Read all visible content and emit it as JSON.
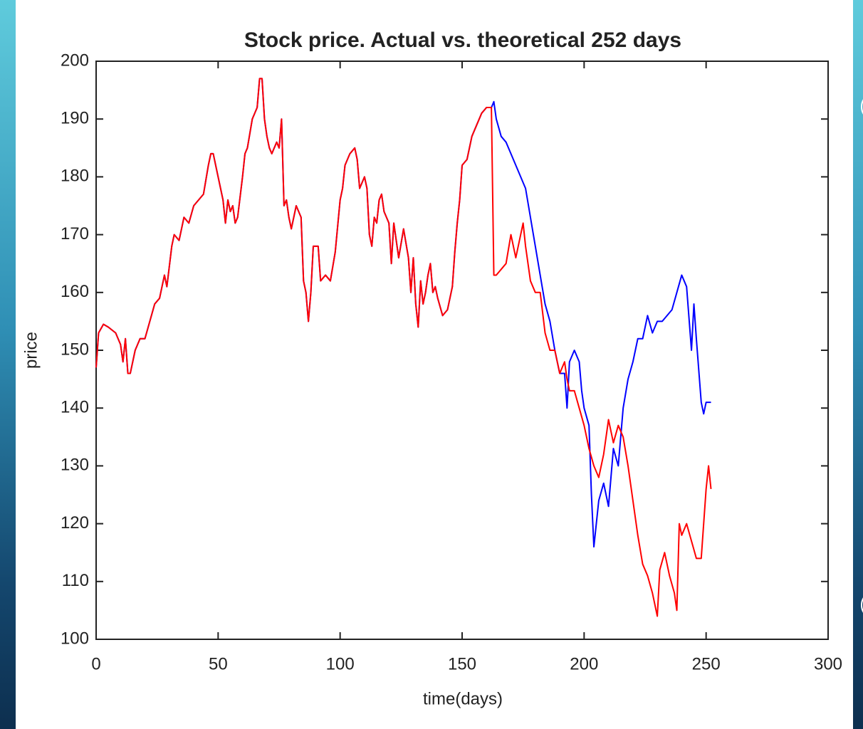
{
  "chart_data": {
    "type": "line",
    "title": "Stock price. Actual vs. theoretical 252 days",
    "x_label": "time(days)",
    "y_label": "price",
    "xlim": [
      0,
      300
    ],
    "xticks": [
      0,
      50,
      100,
      150,
      200,
      250,
      300
    ],
    "ylim": [
      100,
      200
    ],
    "yticks": [
      100,
      110,
      120,
      130,
      140,
      150,
      160,
      170,
      180,
      190,
      200
    ],
    "series": [
      {
        "color": "#0000ff",
        "x": [
          0,
          1,
          3,
          5,
          8,
          10,
          11,
          12,
          13,
          14,
          16,
          18,
          20,
          22,
          24,
          26,
          28,
          29,
          31,
          32,
          34,
          36,
          38,
          40,
          42,
          44,
          46,
          47,
          48,
          50,
          52,
          53,
          54,
          55,
          56,
          57,
          58,
          60,
          61,
          62,
          64,
          65,
          66,
          67,
          68,
          69,
          70,
          71,
          72,
          74,
          75,
          76,
          77,
          78,
          79,
          80,
          82,
          84,
          85,
          86,
          87,
          88,
          89,
          91,
          92,
          94,
          96,
          98,
          100,
          101,
          102,
          104,
          106,
          107,
          108,
          110,
          111,
          112,
          113,
          114,
          115,
          116,
          117,
          118,
          120,
          121,
          122,
          124,
          126,
          128,
          129,
          130,
          131,
          132,
          133,
          134,
          135,
          136,
          137,
          138,
          139,
          140,
          142,
          144,
          146,
          147,
          148,
          149,
          150,
          152,
          154,
          156,
          158,
          160,
          161,
          162,
          163,
          164,
          166,
          168,
          170,
          172,
          174,
          176,
          178,
          180,
          182,
          184,
          186,
          188,
          190,
          192,
          193,
          194,
          196,
          198,
          199,
          200,
          202,
          203,
          204,
          206,
          208,
          210,
          212,
          214,
          216,
          218,
          220,
          222,
          224,
          226,
          228,
          230,
          232,
          234,
          236,
          238,
          240,
          242,
          244,
          245,
          246,
          248,
          249,
          250,
          252
        ],
        "values": [
          147,
          153,
          154.5,
          154,
          153,
          151,
          148,
          152,
          146,
          146,
          150,
          152,
          152,
          155,
          158,
          159,
          163,
          161,
          168,
          170,
          169,
          173,
          172,
          175,
          176,
          177,
          182,
          184,
          184,
          180,
          176,
          172,
          176,
          174,
          175,
          172,
          173,
          180,
          184,
          185,
          190,
          191,
          192,
          197,
          197,
          190,
          187,
          185,
          184,
          186,
          185,
          190,
          175,
          176,
          173,
          171,
          175,
          173,
          162,
          160,
          155,
          160,
          168,
          168,
          162,
          163,
          162,
          167,
          176,
          178,
          182,
          184,
          185,
          183,
          178,
          180,
          178,
          170,
          168,
          173,
          172,
          176,
          177,
          174,
          172,
          165,
          172,
          166,
          171,
          166,
          160,
          166,
          158,
          154,
          162,
          158,
          160,
          163,
          165,
          160,
          161,
          159,
          156,
          157,
          161,
          167,
          172,
          176,
          182,
          183,
          187,
          189,
          191,
          192,
          192,
          192,
          193,
          190,
          187,
          186,
          184,
          182,
          180,
          178,
          173,
          168,
          163,
          158,
          155,
          150,
          146,
          146,
          140,
          148,
          150,
          148,
          143,
          140,
          137,
          125,
          116,
          124,
          127,
          123,
          133,
          130,
          140,
          145,
          148,
          152,
          152,
          156,
          153,
          155,
          155,
          156,
          157,
          160,
          163,
          161,
          150,
          158,
          152,
          141,
          139,
          141,
          141
        ]
      },
      {
        "color": "#ff0000",
        "x": [
          0,
          1,
          3,
          5,
          8,
          10,
          11,
          12,
          13,
          14,
          16,
          18,
          20,
          22,
          24,
          26,
          28,
          29,
          31,
          32,
          34,
          36,
          38,
          40,
          42,
          44,
          46,
          47,
          48,
          50,
          52,
          53,
          54,
          55,
          56,
          57,
          58,
          60,
          61,
          62,
          64,
          65,
          66,
          67,
          68,
          69,
          70,
          71,
          72,
          74,
          75,
          76,
          77,
          78,
          79,
          80,
          82,
          84,
          85,
          86,
          87,
          88,
          89,
          91,
          92,
          94,
          96,
          98,
          100,
          101,
          102,
          104,
          106,
          107,
          108,
          110,
          111,
          112,
          113,
          114,
          115,
          116,
          117,
          118,
          120,
          121,
          122,
          124,
          126,
          128,
          129,
          130,
          131,
          132,
          133,
          134,
          135,
          136,
          137,
          138,
          139,
          140,
          142,
          144,
          146,
          147,
          148,
          149,
          150,
          152,
          154,
          156,
          158,
          160,
          161,
          162,
          163,
          164,
          166,
          168,
          170,
          172,
          174,
          175,
          176,
          178,
          180,
          182,
          184,
          186,
          188,
          190,
          192,
          193,
          194,
          196,
          198,
          200,
          202,
          204,
          206,
          208,
          210,
          212,
          214,
          216,
          218,
          220,
          222,
          224,
          226,
          228,
          230,
          231,
          233,
          235,
          237,
          238,
          239,
          240,
          242,
          244,
          246,
          248,
          250,
          251,
          252
        ],
        "values": [
          147,
          153,
          154.5,
          154,
          153,
          151,
          148,
          152,
          146,
          146,
          150,
          152,
          152,
          155,
          158,
          159,
          163,
          161,
          168,
          170,
          169,
          173,
          172,
          175,
          176,
          177,
          182,
          184,
          184,
          180,
          176,
          172,
          176,
          174,
          175,
          172,
          173,
          180,
          184,
          185,
          190,
          191,
          192,
          197,
          197,
          190,
          187,
          185,
          184,
          186,
          185,
          190,
          175,
          176,
          173,
          171,
          175,
          173,
          162,
          160,
          155,
          160,
          168,
          168,
          162,
          163,
          162,
          167,
          176,
          178,
          182,
          184,
          185,
          183,
          178,
          180,
          178,
          170,
          168,
          173,
          172,
          176,
          177,
          174,
          172,
          165,
          172,
          166,
          171,
          166,
          160,
          166,
          158,
          154,
          162,
          158,
          160,
          163,
          165,
          160,
          161,
          159,
          156,
          157,
          161,
          167,
          172,
          176,
          182,
          183,
          187,
          189,
          191,
          192,
          192,
          192,
          163,
          163,
          164,
          165,
          170,
          166,
          170,
          172,
          168,
          162,
          160,
          160,
          153,
          150,
          150,
          146,
          148,
          145,
          143,
          143,
          140,
          137,
          133,
          130,
          128,
          132,
          138,
          134,
          137,
          135,
          130,
          124,
          118,
          113,
          111,
          108,
          104,
          112,
          115,
          111,
          108,
          105,
          120,
          118,
          120,
          117,
          114,
          114,
          126,
          130,
          126
        ]
      }
    ]
  }
}
